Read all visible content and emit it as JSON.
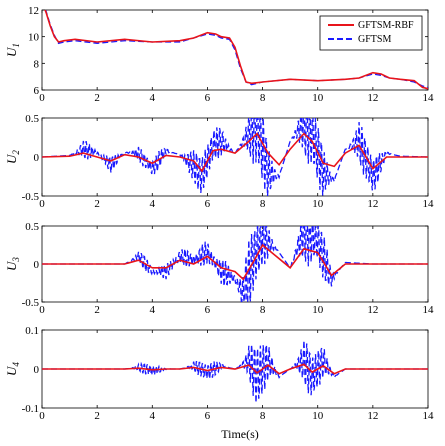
{
  "figure": {
    "xlabel": "Time(s)",
    "legend": {
      "placement": "top-right",
      "entries": [
        {
          "label": "GFTSM-RBF",
          "color": "#e8141b",
          "style": "solid"
        },
        {
          "label": "GFTSM",
          "color": "#1a1aff",
          "style": "dashed"
        }
      ]
    }
  },
  "chart_data": [
    {
      "type": "line",
      "ylabel_main": "U",
      "ylabel_sub": "1",
      "xlim": [
        0,
        14
      ],
      "ylim": [
        6,
        12
      ],
      "xticks": [
        0,
        2,
        4,
        6,
        8,
        10,
        12,
        14
      ],
      "yticks": [
        6,
        8,
        10,
        12
      ],
      "ytick_labels": [
        "6",
        "8",
        "10",
        "12"
      ],
      "series": [
        {
          "name": "GFTSM-RBF",
          "color": "#e8141b",
          "style": "solid",
          "x": [
            0,
            0.15,
            0.3,
            0.45,
            0.6,
            0.8,
            1.2,
            2,
            3,
            4,
            5,
            5.5,
            6,
            6.3,
            6.5,
            6.8,
            7.0,
            7.2,
            7.4,
            7.6,
            8,
            9,
            10,
            11,
            11.5,
            12,
            12.3,
            12.6,
            13,
            13.5,
            13.8,
            14
          ],
          "y": [
            12.6,
            11.8,
            10.8,
            10.0,
            9.6,
            9.7,
            9.8,
            9.6,
            9.8,
            9.6,
            9.7,
            9.9,
            10.3,
            10.2,
            10.0,
            9.9,
            9.2,
            7.8,
            6.6,
            6.5,
            6.6,
            6.8,
            6.7,
            6.8,
            6.9,
            7.3,
            7.2,
            6.9,
            6.8,
            6.7,
            6.2,
            6.1
          ]
        },
        {
          "name": "GFTSM",
          "color": "#1a1aff",
          "style": "dashed",
          "x": [
            0,
            0.15,
            0.3,
            0.45,
            0.6,
            0.8,
            1.2,
            2,
            3,
            4,
            5,
            5.5,
            6,
            6.3,
            6.5,
            6.8,
            7.0,
            7.2,
            7.4,
            7.6,
            8,
            9,
            10,
            11,
            11.5,
            12,
            12.3,
            12.6,
            13,
            13.5,
            13.8,
            14
          ],
          "y": [
            12.7,
            11.9,
            10.9,
            10.1,
            9.5,
            9.6,
            9.7,
            9.5,
            9.7,
            9.6,
            9.6,
            9.9,
            10.2,
            10.1,
            9.9,
            9.8,
            9.0,
            7.6,
            6.6,
            6.4,
            6.6,
            6.8,
            6.7,
            6.8,
            6.9,
            7.2,
            7.1,
            6.9,
            6.8,
            6.6,
            6.3,
            6.2
          ]
        }
      ]
    },
    {
      "type": "line",
      "ylabel_main": "U",
      "ylabel_sub": "2",
      "xlim": [
        0,
        14
      ],
      "ylim": [
        -0.5,
        0.5
      ],
      "xticks": [
        0,
        2,
        4,
        6,
        8,
        10,
        12,
        14
      ],
      "yticks": [
        -0.5,
        0,
        0.5
      ],
      "ytick_labels": [
        "-0.5",
        "0",
        "0.5"
      ],
      "series": [
        {
          "name": "GFTSM-RBF",
          "color": "#e8141b",
          "style": "solid",
          "x": [
            0,
            1.0,
            1.5,
            2.0,
            2.5,
            3.0,
            3.5,
            4.0,
            4.5,
            5.0,
            5.5,
            5.8,
            6.2,
            6.5,
            7.0,
            7.5,
            7.8,
            8.2,
            8.6,
            9.0,
            9.5,
            9.8,
            10.2,
            10.6,
            11.0,
            11.5,
            12.0,
            12.5,
            13,
            14
          ],
          "y": [
            0,
            0.01,
            0.05,
            0.0,
            -0.05,
            0.03,
            0.0,
            -0.08,
            0.02,
            0.0,
            -0.05,
            -0.18,
            0.08,
            0.1,
            0.05,
            0.2,
            0.3,
            0.05,
            -0.1,
            0.1,
            0.3,
            0.2,
            -0.08,
            -0.12,
            0.05,
            0.15,
            -0.15,
            0.0,
            0.0,
            0.0
          ]
        },
        {
          "name": "GFTSM",
          "color": "#1a1aff",
          "style": "dashed",
          "x": [
            0,
            1.0,
            1.5,
            2.0,
            2.5,
            3.0,
            3.5,
            4.0,
            4.5,
            5.0,
            5.5,
            5.8,
            6.2,
            6.5,
            7.0,
            7.5,
            7.8,
            8.2,
            8.6,
            9.0,
            9.5,
            9.8,
            10.2,
            10.6,
            11.0,
            11.5,
            12.0,
            12.5,
            13,
            14
          ],
          "y": [
            0,
            0.02,
            0.1,
            0.05,
            -0.1,
            0.06,
            0.04,
            -0.15,
            0.08,
            0.03,
            -0.12,
            -0.25,
            0.15,
            0.2,
            0.05,
            0.3,
            0.45,
            -0.2,
            -0.25,
            0.2,
            0.45,
            0.3,
            -0.2,
            -0.3,
            0.1,
            0.2,
            -0.25,
            0.05,
            0.01,
            0.0
          ],
          "oscillation": {
            "centers": [
              1.6,
              2.5,
              3.6,
              4.2,
              5.5,
              5.9,
              6.4,
              7.7,
              8.1,
              9.6,
              10.1,
              11.6,
              12.1
            ],
            "amplitudes": [
              0.12,
              0.1,
              0.1,
              0.12,
              0.18,
              0.2,
              0.2,
              0.45,
              0.35,
              0.45,
              0.35,
              0.28,
              0.2
            ]
          }
        }
      ]
    },
    {
      "type": "line",
      "ylabel_main": "U",
      "ylabel_sub": "3",
      "xlim": [
        0,
        14
      ],
      "ylim": [
        -0.5,
        0.5
      ],
      "xticks": [
        0,
        2,
        4,
        6,
        8,
        10,
        12,
        14
      ],
      "yticks": [
        -0.5,
        0,
        0.5
      ],
      "ytick_labels": [
        "-0.5",
        "0",
        "0.5"
      ],
      "series": [
        {
          "name": "GFTSM-RBF",
          "color": "#e8141b",
          "style": "solid",
          "x": [
            0,
            3.0,
            3.5,
            4.0,
            4.5,
            5.0,
            5.5,
            6.0,
            6.5,
            7.0,
            7.3,
            7.7,
            8.0,
            8.5,
            9.0,
            9.5,
            10.0,
            10.5,
            11.0,
            12,
            14
          ],
          "y": [
            0,
            0.0,
            0.05,
            -0.05,
            -0.05,
            0.05,
            0.0,
            0.1,
            -0.05,
            -0.1,
            -0.2,
            0.05,
            0.25,
            0.1,
            -0.05,
            0.2,
            0.15,
            -0.15,
            0.0,
            0.0,
            0.0
          ]
        },
        {
          "name": "GFTSM",
          "color": "#1a1aff",
          "style": "dashed",
          "x": [
            0,
            3.0,
            3.5,
            4.0,
            4.5,
            5.0,
            5.5,
            6.0,
            6.5,
            7.0,
            7.3,
            7.7,
            8.0,
            8.5,
            9.0,
            9.5,
            10.0,
            10.5,
            11.0,
            12,
            14
          ],
          "y": [
            0,
            0.0,
            0.1,
            -0.1,
            -0.1,
            0.1,
            0.05,
            0.15,
            -0.1,
            -0.2,
            -0.4,
            0.1,
            0.35,
            0.2,
            -0.05,
            0.45,
            0.3,
            -0.2,
            0.02,
            0.0,
            0.0
          ],
          "oscillation": {
            "centers": [
              3.7,
              4.5,
              5.2,
              5.9,
              6.6,
              7.5,
              8.0,
              9.6,
              10.2
            ],
            "amplitudes": [
              0.1,
              0.1,
              0.12,
              0.16,
              0.18,
              0.45,
              0.35,
              0.45,
              0.3
            ]
          }
        }
      ]
    },
    {
      "type": "line",
      "ylabel_main": "U",
      "ylabel_sub": "4",
      "xlim": [
        0,
        14
      ],
      "ylim": [
        -0.1,
        0.1
      ],
      "xticks": [
        0,
        2,
        4,
        6,
        8,
        10,
        12,
        14
      ],
      "yticks": [
        -0.1,
        0,
        0.1
      ],
      "ytick_labels": [
        "-0.1",
        "0",
        "0.1"
      ],
      "series": [
        {
          "name": "GFTSM-RBF",
          "color": "#e8141b",
          "style": "solid",
          "x": [
            0,
            3.0,
            3.5,
            4.0,
            4.5,
            5.0,
            5.5,
            6.0,
            6.5,
            7.0,
            7.5,
            7.8,
            8.2,
            8.6,
            9.0,
            9.5,
            9.8,
            10.2,
            10.6,
            11.0,
            14
          ],
          "y": [
            0,
            0.0,
            0.002,
            -0.002,
            0.0,
            0.0,
            0.004,
            -0.004,
            0.004,
            0.0,
            0.01,
            -0.01,
            0.01,
            -0.012,
            0.0,
            0.012,
            -0.008,
            0.008,
            -0.012,
            0.0,
            0.0
          ]
        },
        {
          "name": "GFTSM",
          "color": "#1a1aff",
          "style": "dashed",
          "x": [
            0,
            3.0,
            3.5,
            4.0,
            4.5,
            5.0,
            5.5,
            6.0,
            6.5,
            7.0,
            7.5,
            7.8,
            8.2,
            8.6,
            9.0,
            9.5,
            9.8,
            10.2,
            10.6,
            11.0,
            14
          ],
          "y": [
            0,
            0.0,
            0.004,
            -0.004,
            0.0,
            0.0,
            0.008,
            -0.008,
            0.008,
            0.0,
            0.02,
            -0.02,
            0.02,
            -0.02,
            0.0,
            0.02,
            -0.02,
            0.02,
            -0.02,
            0.0,
            0.0
          ],
          "oscillation": {
            "centers": [
              3.7,
              4.1,
              5.7,
              6.2,
              7.7,
              8.1,
              9.6,
              10.1
            ],
            "amplitudes": [
              0.012,
              0.01,
              0.018,
              0.02,
              0.065,
              0.05,
              0.06,
              0.045
            ]
          }
        }
      ]
    }
  ]
}
